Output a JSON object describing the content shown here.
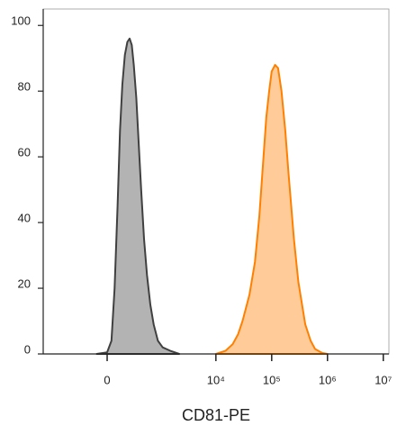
{
  "chart_data": {
    "type": "area",
    "x_label": "CD81-PE",
    "xscale": "biexponential",
    "xlim": [
      -1566,
      12600000
    ],
    "ylim": [
      0,
      105
    ],
    "xticks": [
      0,
      {
        "value": 10000,
        "label": "10⁴"
      },
      {
        "value": 100000,
        "label": "10⁵"
      },
      {
        "value": 1000000,
        "label": "10⁶"
      },
      {
        "value": 10000000,
        "label": "10⁷"
      }
    ],
    "yticks": [
      0,
      20,
      40,
      60,
      80,
      100
    ],
    "grid": false,
    "series": [
      {
        "color": "#404040",
        "fill": "#b3b3b3",
        "x": [
          -100,
          0,
          40,
          70,
          100,
          125,
          150,
          180,
          210,
          240,
          270,
          300,
          340,
          380,
          430,
          490,
          560,
          650,
          750,
          900,
          1100,
          1500,
          2200
        ],
        "values": [
          0,
          0.5,
          4,
          20,
          45,
          68,
          82,
          91,
          95,
          96,
          94,
          88,
          78,
          65,
          50,
          35,
          24,
          15,
          9,
          4,
          2,
          1,
          0
        ]
      },
      {
        "color": "#ff8000",
        "fill": "#ffcc99",
        "x": [
          10000,
          15000,
          20000,
          25000,
          30000,
          40000,
          50000,
          60000,
          70000,
          80000,
          90000,
          100000,
          115000,
          130000,
          150000,
          175000,
          200000,
          250000,
          300000,
          400000,
          500000,
          600000,
          800000,
          1000000
        ],
        "values": [
          0,
          1,
          3,
          6,
          10,
          18,
          28,
          42,
          58,
          72,
          80,
          86,
          88,
          87,
          80,
          68,
          55,
          35,
          22,
          9,
          4,
          1.5,
          0.3,
          0
        ]
      }
    ]
  }
}
